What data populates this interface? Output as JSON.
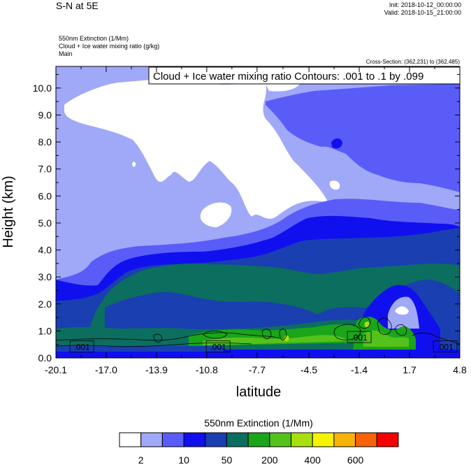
{
  "header": {
    "title": "S-N at 5E",
    "init": "Init: 2018-10-12_00:00:00",
    "valid": "Valid: 2018-10-15_21:00:00",
    "subtitle_1": "550nm Extinction   (1/Mm)",
    "subtitle_2": "Cloud + Ice water mixing ratio   (g/kg)",
    "subtitle_3": "Main",
    "cross_section": "Cross-Section: (362,231) to (362,485)",
    "contour_info": "Cloud + Ice water mixing ratio Contours: .001 to .1 by .099"
  },
  "chart_data": {
    "type": "heatmap",
    "title": "S-N at 5E",
    "xlabel": "latitude",
    "ylabel": "Height (km)",
    "xlim": [
      -20.1,
      4.8
    ],
    "ylim": [
      0.0,
      10.8
    ],
    "x_ticks": [
      "-20.1",
      "-17.0",
      "-13.9",
      "-10.8",
      "-7.7",
      "-4.5",
      "-1.4",
      "1.7",
      "4.8"
    ],
    "y_ticks": [
      "0.0",
      "1.0",
      "2.0",
      "3.0",
      "4.0",
      "5.0",
      "6.0",
      "7.0",
      "8.0",
      "9.0",
      "10.0"
    ],
    "contour_labels": [
      {
        "text": ".001",
        "x": -18.5,
        "y": 0.4
      },
      {
        "text": ".001",
        "x": -10.1,
        "y": 0.4
      },
      {
        "text": ".001",
        "x": -1.4,
        "y": 0.75
      },
      {
        "text": ".001",
        "x": 3.9,
        "y": 0.4
      }
    ],
    "colorbar": {
      "title": "550nm Extinction  (1/Mm)",
      "colors": [
        "#ffffff",
        "#a0a8f8",
        "#5a5cf8",
        "#1010ee",
        "#1a3fb0",
        "#0b6e5f",
        "#1aa51a",
        "#55c21c",
        "#a8df0f",
        "#f4f400",
        "#f8b20a",
        "#f8620a",
        "#f80000"
      ],
      "tick_labels": [
        "2",
        "10",
        "50",
        "200",
        "400",
        "600"
      ]
    },
    "grid": false
  }
}
